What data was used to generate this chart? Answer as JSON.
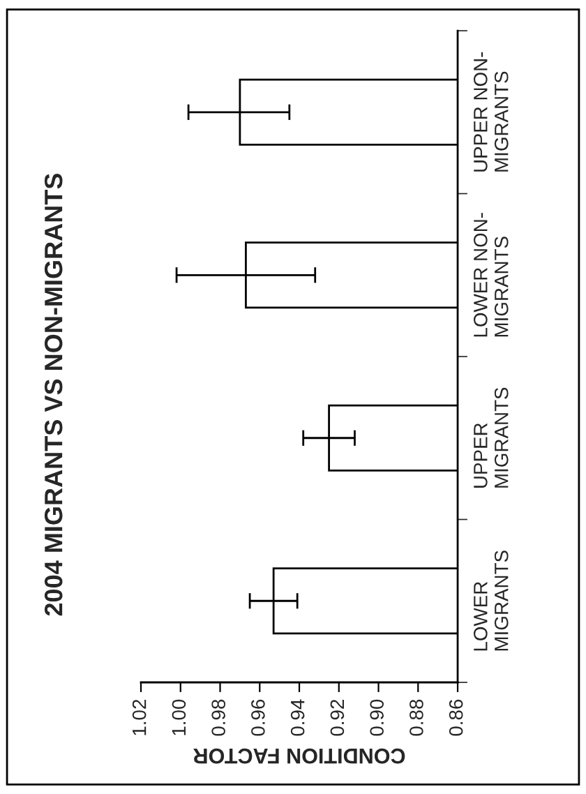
{
  "chart_data": {
    "type": "bar",
    "orientation": "horizontal",
    "title": "2004 MIGRANTS VS NON-MIGRANTS",
    "xlabel": "CONDITION FACTOR",
    "categories": [
      "UPPER NON-\nMIGRANTS",
      "LOWER NON-\nMIGRANTS",
      "UPPER\nMIGRANTS",
      "LOWER\nMIGRANTS"
    ],
    "values": [
      0.97,
      0.967,
      0.925,
      0.953
    ],
    "errors": [
      [
        0.945,
        0.996
      ],
      [
        0.932,
        1.002
      ],
      [
        0.912,
        0.938
      ],
      [
        0.941,
        0.965
      ]
    ],
    "color": "#ffffff",
    "xlim": [
      1.02,
      0.86
    ],
    "xticks": [
      {
        "value": 1.02,
        "label": "1.02"
      },
      {
        "value": 1.0,
        "label": "1.00"
      },
      {
        "value": 0.98,
        "label": "0.98"
      },
      {
        "value": 0.96,
        "label": "0.96"
      },
      {
        "value": 0.94,
        "label": "0.94"
      },
      {
        "value": 0.92,
        "label": "0.92"
      },
      {
        "value": 0.9,
        "label": "0.90"
      },
      {
        "value": 0.88,
        "label": "0.88"
      },
      {
        "value": 0.86,
        "label": "0.86"
      }
    ],
    "grid": false,
    "legend": false
  }
}
